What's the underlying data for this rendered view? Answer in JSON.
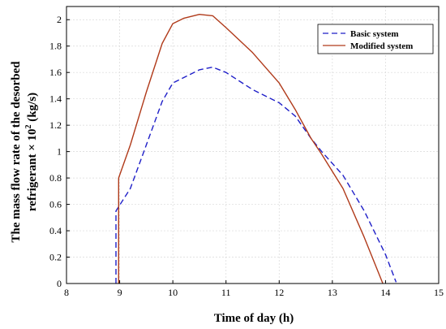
{
  "chart_data": {
    "type": "line",
    "xlabel": "Time of day (h)",
    "ylabel_line1": "The mass flow rate of the desorbed",
    "ylabel_line2": "refrigerant × 10",
    "ylabel_sup": "2",
    "ylabel_unit": " (kg/s)",
    "xlim": [
      8,
      15
    ],
    "ylim": [
      0,
      2.1
    ],
    "xticks": [
      8,
      9,
      10,
      11,
      12,
      13,
      14,
      15
    ],
    "yticks": [
      0,
      0.2,
      0.4,
      0.6,
      0.8,
      1,
      1.2,
      1.4,
      1.6,
      1.8,
      2
    ],
    "grid": true,
    "legend_position": "top-right",
    "series": [
      {
        "name": "Basic system",
        "color": "#1f1fc8",
        "dash": "dashed",
        "points": [
          [
            8.93,
            0
          ],
          [
            8.93,
            0.55
          ],
          [
            9.2,
            0.72
          ],
          [
            9.5,
            1.05
          ],
          [
            9.8,
            1.38
          ],
          [
            10.0,
            1.52
          ],
          [
            10.3,
            1.58
          ],
          [
            10.5,
            1.62
          ],
          [
            10.75,
            1.64
          ],
          [
            11.0,
            1.6
          ],
          [
            11.5,
            1.47
          ],
          [
            12.0,
            1.37
          ],
          [
            12.3,
            1.27
          ],
          [
            12.6,
            1.1
          ],
          [
            12.8,
            1.0
          ],
          [
            13.2,
            0.82
          ],
          [
            13.6,
            0.55
          ],
          [
            14.0,
            0.22
          ],
          [
            14.2,
            0.01
          ]
        ]
      },
      {
        "name": "Modified system",
        "color": "#b03a1a",
        "dash": "solid",
        "points": [
          [
            8.98,
            0
          ],
          [
            8.98,
            0.8
          ],
          [
            9.2,
            1.05
          ],
          [
            9.5,
            1.45
          ],
          [
            9.8,
            1.82
          ],
          [
            10.0,
            1.97
          ],
          [
            10.2,
            2.01
          ],
          [
            10.5,
            2.04
          ],
          [
            10.75,
            2.03
          ],
          [
            11.0,
            1.94
          ],
          [
            11.5,
            1.75
          ],
          [
            12.0,
            1.52
          ],
          [
            12.3,
            1.32
          ],
          [
            12.6,
            1.1
          ],
          [
            12.8,
            0.98
          ],
          [
            13.2,
            0.72
          ],
          [
            13.6,
            0.35
          ],
          [
            13.95,
            0.0
          ]
        ]
      }
    ]
  }
}
